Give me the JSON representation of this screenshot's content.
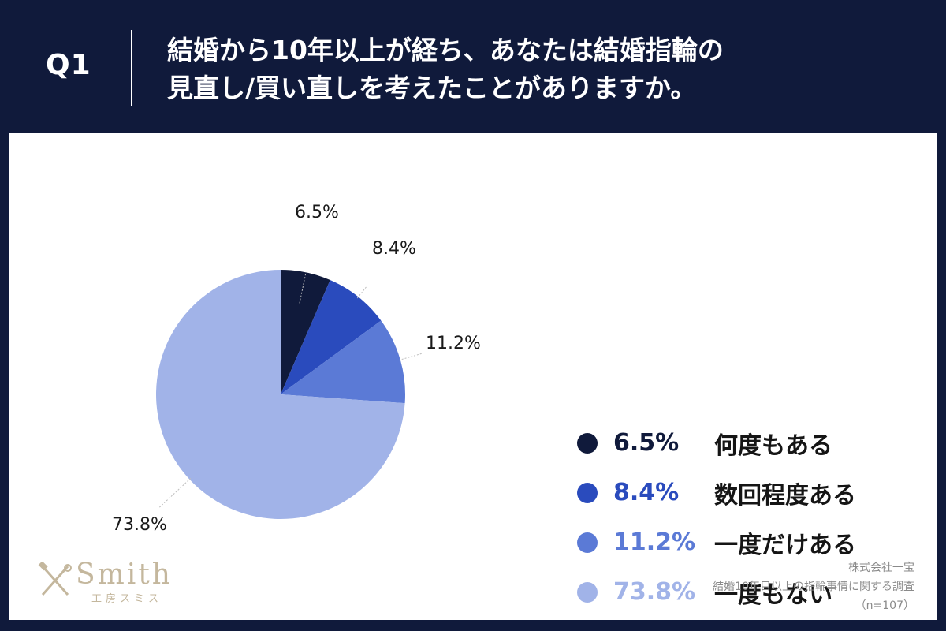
{
  "header": {
    "q_label": "Q1",
    "title_line1": "結婚から10年以上が経ち、あなたは結婚指輪の",
    "title_line2": "見直し/買い直しを考えたことがありますか。"
  },
  "chart_data": {
    "type": "pie",
    "title": "結婚から10年以上が経ち、あなたは結婚指輪の見直し/買い直しを考えたことがありますか。",
    "start_angle": "12 o'clock",
    "direction": "clockwise",
    "slices": [
      {
        "label": "何度もある",
        "value": 6.5,
        "value_label": "6.5%",
        "color": "#101a3b"
      },
      {
        "label": "数回程度ある",
        "value": 8.4,
        "value_label": "8.4%",
        "color": "#2a4bbd"
      },
      {
        "label": "一度だけある",
        "value": 11.2,
        "value_label": "11.2%",
        "color": "#5b7ad6"
      },
      {
        "label": "一度もない",
        "value": 73.8,
        "value_label": "73.8%",
        "color": "#a1b3e8"
      }
    ],
    "legend_position": "right"
  },
  "legend": [
    {
      "pct": "6.5%",
      "label": "何度もある",
      "color": "#101a3b"
    },
    {
      "pct": "8.4%",
      "label": "数回程度ある",
      "color": "#2a4bbd"
    },
    {
      "pct": "11.2%",
      "label": "一度だけある",
      "color": "#5b7ad6"
    },
    {
      "pct": "73.8%",
      "label": "一度もない",
      "color": "#a1b3e8"
    }
  ],
  "logo": {
    "brand": "Smith",
    "sub": "工房スミス",
    "color": "#c4b79d"
  },
  "source": {
    "company": "株式会社一宝",
    "survey": "結婚10年目以上の指輪事情に関する調査",
    "sample": "（n=107）"
  }
}
